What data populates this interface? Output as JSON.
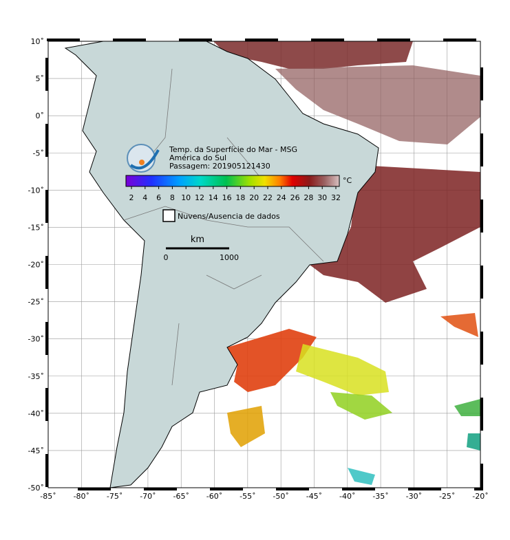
{
  "map": {
    "title_lines": [
      "Temp. da Superfície do Mar - MSG",
      "América do Sul",
      "Passagem: 201905121430"
    ],
    "colorbar": {
      "ticks": [
        "2",
        "4",
        "6",
        "8",
        "10",
        "12",
        "14",
        "16",
        "18",
        "20",
        "22",
        "24",
        "26",
        "28",
        "30",
        "32"
      ],
      "unit": "°C"
    },
    "legend_label": "Nuvens/Ausencia de dados",
    "scale_bar": {
      "unit": "km",
      "start": "0",
      "end": "1000"
    },
    "lon_ticks": [
      "-85˚",
      "-80˚",
      "-75˚",
      "-70˚",
      "-65˚",
      "-60˚",
      "-55˚",
      "-50˚",
      "-45˚",
      "-40˚",
      "-35˚",
      "-30˚",
      "-25˚",
      "-20˚"
    ],
    "lat_ticks": [
      "10˚",
      "5˚",
      "0˚",
      "-5˚",
      "-10˚",
      "-15˚",
      "-20˚",
      "-25˚",
      "-30˚",
      "-35˚",
      "-40˚",
      "-45˚",
      "-50˚"
    ]
  }
}
